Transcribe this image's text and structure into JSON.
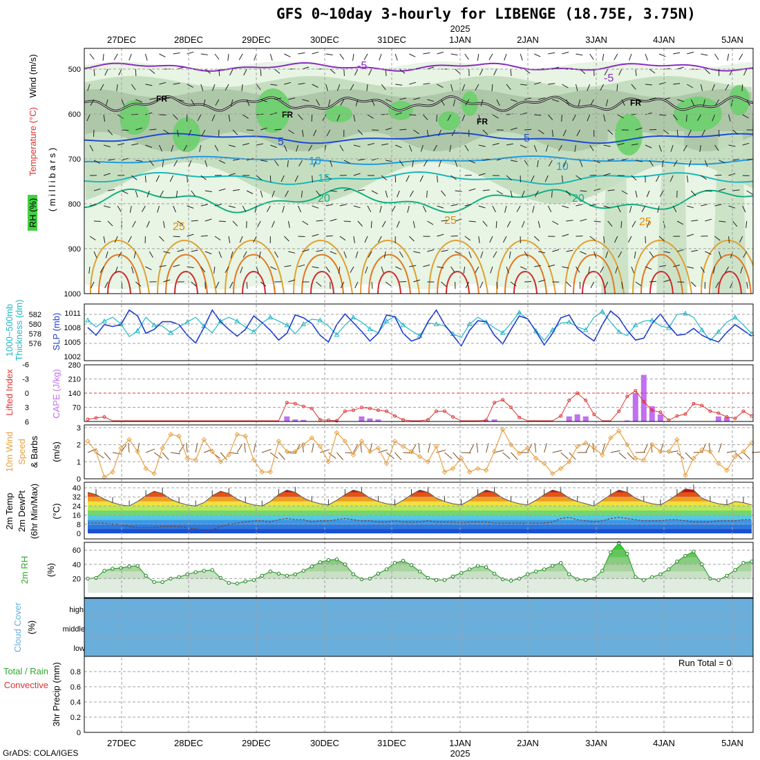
{
  "title": "GFS 0~10day 3-hourly for LIBENGE (18.75E, 3.75N)",
  "year": "2025",
  "credit": "GrADS: COLA/IGES",
  "run_total": "Run Total = 0",
  "dates": [
    "27DEC",
    "28DEC",
    "29DEC",
    "30DEC",
    "31DEC",
    "1JAN",
    "2JAN",
    "3JAN",
    "4JAN",
    "5JAN"
  ],
  "colors": {
    "rh_green": "#43d043",
    "temp_orange": "#e08a00",
    "slp_blue": "#1a3ccf",
    "thk_cyan": "#20b8c8",
    "cape_purple": "#c070f0",
    "li_red": "#e03030",
    "wind_orange": "#e8a040",
    "rh2m_green": "#2ea82e",
    "cloud_blue": "#6aaedb"
  },
  "panel_labels": {
    "upper": {
      "wind": "Wind (m/s)",
      "temp": "Temperature (°C)",
      "rh": "RH (%)",
      "mb": "( m i l l i b a r s )"
    },
    "thk": {
      "line1": "1000~500mb",
      "line2": "Thickness (dm)"
    },
    "slp": "SLP (mb)",
    "li": "Lifted Index",
    "cape": "CAPE (J/kg)",
    "wind10": {
      "l1": "10m Wind",
      "l2": "Speed",
      "l3": "& Barbs",
      "unit": "(m/s)"
    },
    "temp2m": {
      "l1": "2m Temp",
      "l2": "2m DewPt",
      "l3": "(6hr Min/Max)",
      "unit": "(°C)"
    },
    "rh2m": {
      "l1": "2m RH",
      "unit": "(%)"
    },
    "cloud": {
      "l1": "Cloud Cover",
      "unit": "(%)"
    },
    "precip": {
      "l1": "Total / Rain",
      "l2": "Convective",
      "l3": "3hr Precip (mm)"
    }
  },
  "upper_axis": {
    "ticks": [
      "500",
      "600",
      "700",
      "800",
      "900",
      "1000"
    ]
  },
  "thk_axis": {
    "ticks": [
      "582",
      "580",
      "578",
      "576"
    ]
  },
  "slp_axis": {
    "ticks": [
      "1011",
      "1008",
      "1005",
      "1002"
    ]
  },
  "li_axis": {
    "ticks": [
      "-6",
      "-3",
      "0",
      "3",
      "6"
    ]
  },
  "cape_axis": {
    "ticks": [
      "280",
      "210",
      "140",
      "70"
    ]
  },
  "wind_axis": {
    "ticks": [
      "3",
      "2",
      "1",
      "0"
    ]
  },
  "temp_axis": {
    "ticks": [
      "40",
      "32",
      "24",
      "16",
      "8",
      "0"
    ]
  },
  "rh_axis": {
    "ticks": [
      "60",
      "40",
      "20"
    ]
  },
  "cloud_axis": {
    "ticks": [
      "high",
      "middle",
      "low"
    ]
  },
  "precip_axis": {
    "ticks": [
      "0.8",
      "0.6",
      "0.4",
      "0.2",
      "0"
    ]
  },
  "contour_labels": {
    "fr": "FR",
    "t_m5": "-5",
    "t_5": "5",
    "t_10": "10",
    "t_15": "15",
    "t_20": "20",
    "t_25": "25"
  },
  "chart_data": {
    "type": "line",
    "x_dates": [
      "27DEC",
      "28DEC",
      "29DEC",
      "30DEC",
      "31DEC",
      "1JAN",
      "2JAN",
      "3JAN",
      "4JAN",
      "5JAN"
    ],
    "thickness_dm": [
      580.8,
      579.4,
      580.6,
      581.4,
      580.0,
      577.4,
      578.6,
      581.4,
      579.8,
      579.6,
      578.2,
      579.4,
      580.4,
      581.4,
      579.6,
      578.2,
      580.6,
      581.4,
      580.6,
      579.4,
      578.4,
      580.2,
      581.4,
      580.6,
      579.8,
      578.0,
      580.0,
      581.0,
      580.8,
      579.6,
      577.8,
      579.8,
      581.4,
      580.4,
      579.0,
      578.2,
      580.6,
      581.6,
      579.8,
      578.6,
      577.6,
      580.2,
      580.0,
      579.6,
      578.0,
      577.2,
      580.0,
      581.4,
      580.4,
      579.2,
      578.2,
      580.2,
      582.4,
      581.0,
      578.6,
      576.6,
      578.8,
      580.2,
      580.4,
      579.4,
      578.8,
      581.4,
      582.6,
      580.4,
      578.4,
      577.6,
      579.8,
      580.6,
      580.8,
      579.6,
      579.2,
      582.0,
      582.2,
      581.4,
      578.8,
      576.6,
      578.4,
      580.4,
      581.4,
      579.8,
      578.0
    ],
    "slp_mb": [
      1008.0,
      1006.4,
      1008.6,
      1008.2,
      1008.6,
      1011.6,
      1010.4,
      1006.8,
      1007.6,
      1009.2,
      1009.2,
      1008.6,
      1006.4,
      1004.8,
      1008.0,
      1011.6,
      1009.2,
      1007.6,
      1006.2,
      1007.6,
      1010.4,
      1009.0,
      1007.4,
      1005.4,
      1006.8,
      1010.6,
      1010.0,
      1008.8,
      1006.4,
      1005.0,
      1008.6,
      1010.8,
      1009.0,
      1007.2,
      1005.2,
      1006.8,
      1010.6,
      1010.2,
      1006.8,
      1005.2,
      1005.8,
      1009.2,
      1011.6,
      1008.6,
      1006.4,
      1004.2,
      1007.4,
      1009.4,
      1009.2,
      1006.4,
      1004.6,
      1007.6,
      1010.4,
      1009.8,
      1007.2,
      1004.4,
      1006.8,
      1010.0,
      1010.6,
      1007.8,
      1006.4,
      1005.2,
      1008.6,
      1011.4,
      1010.0,
      1007.4,
      1005.4,
      1005.8,
      1008.8,
      1010.8,
      1008.4,
      1006.4,
      1006.6,
      1007.8,
      1006.4,
      1005.6,
      1005.0,
      1007.0,
      1008.6,
      1007.4,
      1006.2
    ],
    "cape_jkg": [
      0,
      0,
      0,
      0,
      0,
      0,
      0,
      0,
      0,
      0,
      0,
      0,
      0,
      0,
      0,
      0,
      0,
      0,
      0,
      0,
      0,
      0,
      0,
      0,
      25,
      10,
      8,
      0,
      0,
      0,
      0,
      0,
      0,
      25,
      15,
      10,
      0,
      0,
      0,
      0,
      0,
      0,
      0,
      0,
      0,
      0,
      0,
      0,
      5,
      10,
      0,
      0,
      0,
      0,
      0,
      0,
      0,
      0,
      25,
      35,
      25,
      0,
      0,
      0,
      0,
      5,
      140,
      230,
      75,
      35,
      0,
      0,
      0,
      0,
      0,
      0,
      25,
      20,
      0,
      0,
      0
    ],
    "lifted_index": [
      5.5,
      5.2,
      5.0,
      6.5,
      6.5,
      6.5,
      6.5,
      6.5,
      6.5,
      6.5,
      6.5,
      6.5,
      6.5,
      6.5,
      6.5,
      6.5,
      6.5,
      6.5,
      6.5,
      6.5,
      6.5,
      6.5,
      6.5,
      6.5,
      2.0,
      2.2,
      2.8,
      3.2,
      5.6,
      5.7,
      5.8,
      3.8,
      3.6,
      3.0,
      3.2,
      3.6,
      3.8,
      4.8,
      5.6,
      6.5,
      6.5,
      5.6,
      3.8,
      3.8,
      5.0,
      6.5,
      6.5,
      6.5,
      5.7,
      2.0,
      1.4,
      3.0,
      5.1,
      6.5,
      6.5,
      6.5,
      6.5,
      4.8,
      1.5,
      0.0,
      1.5,
      4.5,
      6.5,
      6.5,
      3.8,
      0.7,
      -0.5,
      1.8,
      3.6,
      4.0,
      5.7,
      4.8,
      4.4,
      2.2,
      2.6,
      3.8,
      4.2,
      5.0,
      5.3,
      3.8,
      4.8
    ],
    "wind10_ms": [
      2.2,
      1.6,
      0.1,
      0.4,
      1.8,
      2.3,
      1.6,
      0.6,
      0.3,
      1.8,
      2.6,
      2.5,
      1.2,
      1.1,
      2.3,
      1.6,
      1.0,
      1.4,
      2.6,
      2.5,
      1.1,
      0.4,
      0.4,
      2.2,
      1.6,
      1.6,
      2.0,
      2.4,
      1.9,
      1.0,
      2.7,
      2.2,
      1.4,
      2.2,
      1.6,
      1.8,
      0.9,
      2.2,
      1.9,
      1.6,
      1.3,
      1.0,
      1.9,
      0.4,
      0.6,
      1.2,
      0.4,
      0.6,
      0.5,
      1.6,
      2.9,
      2.0,
      1.5,
      1.8,
      1.2,
      0.9,
      0.3,
      0.6,
      1.0,
      1.9,
      2.1,
      1.8,
      1.4,
      2.4,
      2.8,
      2.0,
      1.2,
      1.1,
      2.0,
      1.6,
      1.6,
      2.3,
      0.2,
      1.2,
      1.7,
      1.6,
      0.9,
      0.5,
      1.3,
      1.6,
      2.1
    ],
    "temp2m_c": [
      36,
      34,
      30,
      27,
      25,
      24,
      28,
      33,
      37,
      35,
      30,
      27,
      25,
      24,
      27,
      33,
      37,
      35,
      30,
      27,
      25,
      24,
      28,
      34,
      38,
      36,
      31,
      28,
      26,
      25,
      29,
      34,
      38,
      36,
      31,
      28,
      26,
      25,
      29,
      34,
      38,
      36,
      31,
      28,
      26,
      25,
      29,
      34,
      38,
      36,
      31,
      28,
      26,
      25,
      29,
      34,
      38,
      36,
      31,
      28,
      26,
      24,
      29,
      34,
      38,
      36,
      31,
      28,
      26,
      25,
      29,
      34,
      39,
      38,
      31,
      28,
      26,
      25,
      28,
      27,
      25
    ],
    "dewpt2m_c": [
      9,
      9,
      9,
      8,
      8,
      6,
      5,
      5,
      5,
      6,
      6,
      6,
      5,
      4,
      3,
      3,
      6,
      8,
      9,
      10,
      11,
      11,
      10,
      12,
      13,
      12,
      12,
      10,
      11,
      11,
      12,
      13,
      12,
      11,
      11,
      10,
      10,
      11,
      10,
      10,
      10,
      11,
      10,
      10,
      10,
      9,
      10,
      10,
      10,
      9,
      9,
      9,
      9,
      9,
      9,
      9,
      10,
      13,
      14,
      12,
      11,
      10,
      11,
      13,
      14,
      13,
      12,
      11,
      11,
      11,
      12,
      12,
      11,
      10,
      10,
      10,
      11,
      11,
      11,
      12,
      12
    ],
    "rh2m_pct": [
      20,
      21,
      31,
      34,
      35,
      37,
      38,
      24,
      15,
      15,
      20,
      22,
      26,
      29,
      31,
      32,
      21,
      14,
      13,
      16,
      18,
      24,
      30,
      27,
      24,
      26,
      31,
      37,
      43,
      46,
      47,
      40,
      26,
      19,
      20,
      27,
      33,
      42,
      45,
      39,
      30,
      21,
      18,
      18,
      23,
      28,
      33,
      38,
      36,
      27,
      19,
      17,
      20,
      26,
      30,
      33,
      38,
      42,
      26,
      19,
      18,
      20,
      31,
      57,
      70,
      55,
      22,
      18,
      22,
      26,
      33,
      44,
      52,
      58,
      40,
      20,
      18,
      24,
      32,
      42,
      44
    ],
    "cloud_high": [
      0,
      1,
      0,
      0,
      1,
      0,
      1,
      0,
      1,
      0,
      1,
      1,
      0,
      0,
      0,
      0,
      0,
      1,
      1,
      0,
      0,
      1,
      1,
      0,
      0,
      0,
      1,
      0,
      1,
      1,
      1,
      1,
      0,
      0,
      0,
      1,
      0,
      0,
      0,
      1,
      0,
      0,
      1,
      1,
      1,
      0,
      0,
      1,
      0,
      0,
      1,
      1,
      1,
      1,
      0,
      0,
      1,
      0,
      0,
      0,
      1,
      1,
      1,
      1,
      0,
      1,
      1,
      1,
      0,
      1,
      0,
      1,
      0,
      0,
      0,
      0,
      0,
      1,
      1,
      0,
      1
    ],
    "cloud_mid": [
      0,
      0,
      0,
      0,
      1,
      0,
      0,
      0,
      0,
      0,
      0,
      0,
      0,
      0,
      0,
      0,
      0,
      0,
      0,
      0,
      0,
      0,
      1,
      0,
      0,
      0,
      0,
      0,
      0,
      0,
      0,
      1,
      0,
      1,
      1,
      0,
      0,
      0,
      0,
      0,
      0,
      1,
      0,
      0,
      0,
      0,
      0,
      0,
      1,
      0,
      0,
      0,
      0,
      0,
      0,
      0,
      0,
      0,
      0,
      0,
      0,
      0,
      0,
      1,
      1,
      1,
      1,
      0,
      0,
      1,
      0,
      0,
      0,
      1,
      1,
      0,
      0,
      0,
      1,
      0,
      1
    ],
    "precip_mm": 0
  }
}
